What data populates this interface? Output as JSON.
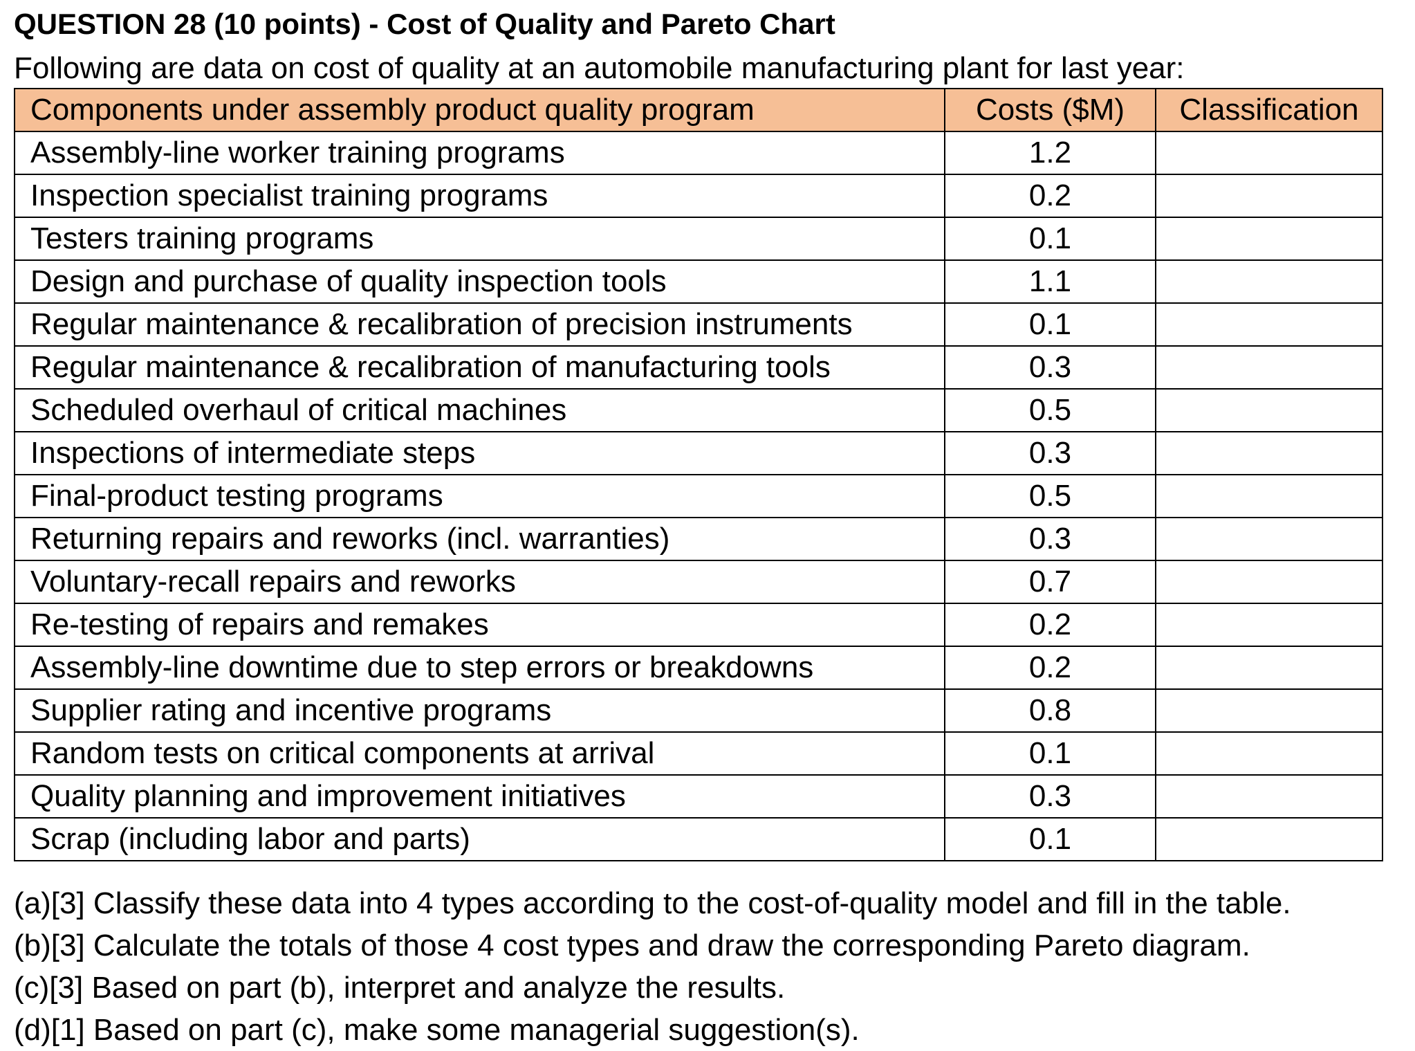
{
  "title": "QUESTION 28 (10 points) - Cost of Quality and Pareto Chart",
  "intro": "Following are data on cost of quality at an automobile manufacturing plant for last year:",
  "table": {
    "header": {
      "component": "Components under assembly product quality program",
      "cost": "Costs ($M)",
      "classification": "Classification"
    },
    "rows": [
      {
        "component": "Assembly-line worker training programs",
        "cost": "1.2",
        "classification": ""
      },
      {
        "component": "Inspection specialist training programs",
        "cost": "0.2",
        "classification": ""
      },
      {
        "component": "Testers training programs",
        "cost": "0.1",
        "classification": ""
      },
      {
        "component": "Design and purchase of quality inspection tools",
        "cost": "1.1",
        "classification": ""
      },
      {
        "component": "Regular maintenance & recalibration of precision instruments",
        "cost": "0.1",
        "classification": ""
      },
      {
        "component": "Regular maintenance & recalibration of manufacturing tools",
        "cost": "0.3",
        "classification": ""
      },
      {
        "component": "Scheduled overhaul of critical machines",
        "cost": "0.5",
        "classification": ""
      },
      {
        "component": "Inspections of intermediate steps",
        "cost": "0.3",
        "classification": ""
      },
      {
        "component": "Final-product testing programs",
        "cost": "0.5",
        "classification": ""
      },
      {
        "component": "Returning repairs and reworks (incl. warranties)",
        "cost": "0.3",
        "classification": ""
      },
      {
        "component": "Voluntary-recall repairs and reworks",
        "cost": "0.7",
        "classification": ""
      },
      {
        "component": "Re-testing of repairs and remakes",
        "cost": "0.2",
        "classification": ""
      },
      {
        "component": "Assembly-line downtime due to step errors or breakdowns",
        "cost": "0.2",
        "classification": ""
      },
      {
        "component": "Supplier rating and incentive programs",
        "cost": "0.8",
        "classification": ""
      },
      {
        "component": "Random tests on critical components at arrival",
        "cost": "0.1",
        "classification": ""
      },
      {
        "component": "Quality planning and improvement initiatives",
        "cost": "0.3",
        "classification": ""
      },
      {
        "component": "Scrap (including labor and parts)",
        "cost": "0.1",
        "classification": ""
      }
    ]
  },
  "questions": [
    "(a)[3] Classify these data into 4 types according to the cost-of-quality model and fill in the table.",
    "(b)[3] Calculate the totals of those 4 cost types and draw the corresponding Pareto diagram.",
    "(c)[3] Based on part (b), interpret and analyze the results.",
    "(d)[1] Based on part (c), make some managerial suggestion(s)."
  ],
  "colors": {
    "header_background": "#f6bf96",
    "border": "#000000",
    "text": "#000000"
  }
}
